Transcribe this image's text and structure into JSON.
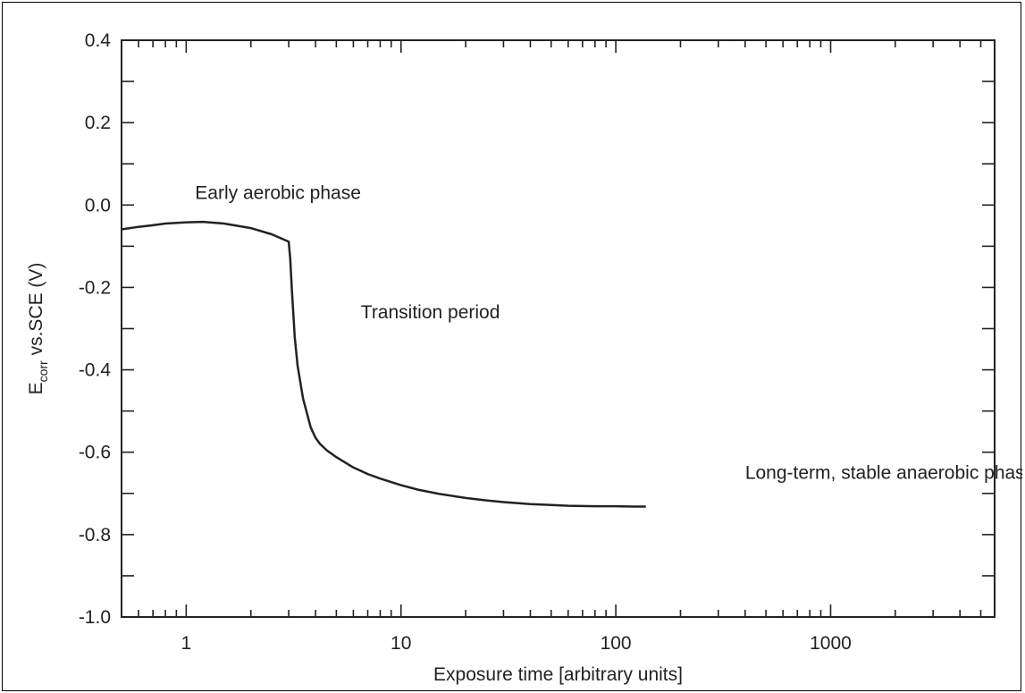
{
  "chart_data": {
    "type": "line",
    "xlabel": "Exposure time [arbitrary units]",
    "ylabel_main": "E",
    "ylabel_sub": "corr",
    "ylabel_rest": " vs.SCE (V)",
    "xscale": "log",
    "xlim": [
      0.5,
      5800
    ],
    "ylim": [
      -1.0,
      0.4
    ],
    "x_ticks": [
      1,
      10,
      100,
      1000
    ],
    "x_tick_labels": [
      "1",
      "10",
      "100",
      "1000"
    ],
    "y_ticks": [
      -1.0,
      -0.8,
      -0.6,
      -0.4,
      -0.2,
      0.0,
      0.2,
      0.4
    ],
    "y_tick_labels": [
      "-1.0",
      "-0.8",
      "-0.6",
      "-0.4",
      "-0.2",
      "0.0",
      "0.2",
      "0.4"
    ],
    "grid": false,
    "series": [
      {
        "color": "#222222",
        "x": [
          0.5,
          0.6,
          0.7,
          0.8,
          1.0,
          1.2,
          1.5,
          2.0,
          2.5,
          3.0,
          3.05,
          3.1,
          3.15,
          3.2,
          3.3,
          3.5,
          3.8,
          4.0,
          4.2,
          4.5,
          5.0,
          6.0,
          7.0,
          8.0,
          10,
          12,
          15,
          20,
          25,
          30,
          40,
          50,
          60,
          80,
          100,
          120,
          138
        ],
        "y": [
          -0.059,
          -0.053,
          -0.049,
          -0.045,
          -0.042,
          -0.041,
          -0.045,
          -0.056,
          -0.071,
          -0.089,
          -0.13,
          -0.2,
          -0.26,
          -0.32,
          -0.39,
          -0.47,
          -0.54,
          -0.565,
          -0.58,
          -0.595,
          -0.612,
          -0.637,
          -0.653,
          -0.664,
          -0.68,
          -0.691,
          -0.701,
          -0.711,
          -0.717,
          -0.721,
          -0.726,
          -0.728,
          -0.73,
          -0.731,
          -0.731,
          -0.732,
          -0.732
        ]
      }
    ],
    "annotations": [
      {
        "text": "Early aerobic phase",
        "x": 1.1,
        "y": 0.015
      },
      {
        "text": "Transition period",
        "x": 6.5,
        "y": -0.275
      },
      {
        "text": "Long-term, stable anaerobic phase",
        "x": 400,
        "y": -0.665
      }
    ]
  }
}
